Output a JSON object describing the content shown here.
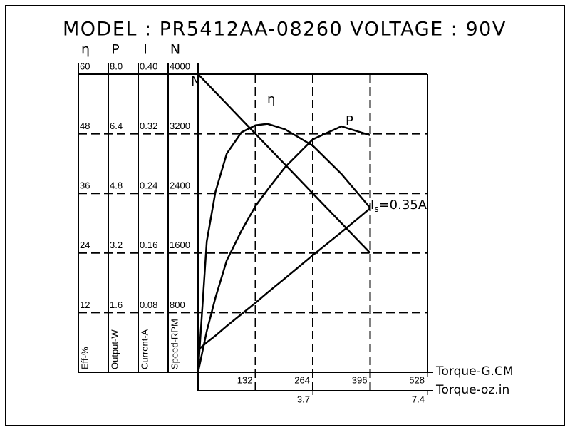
{
  "chart_data": {
    "type": "line",
    "title": "MODEL : PR5412AA-08260 VOLTAGE : 90V",
    "x_label": "Torque-G.CM",
    "x2_label": "Torque-oz.in",
    "x": [
      0,
      20,
      40,
      66,
      100,
      132,
      160,
      200,
      264,
      330,
      396
    ],
    "xlim": [
      0,
      528
    ],
    "xticks": [
      132,
      264,
      396,
      528
    ],
    "x2lim": [
      0,
      7.4
    ],
    "x2ticks": [
      3.7,
      7.4
    ],
    "grid": true,
    "color": "#000000",
    "series": [
      {
        "name": "η",
        "axis_label": "Eff-%",
        "ylim": [
          0,
          60
        ],
        "yticks": [
          12,
          24,
          36,
          48,
          60
        ],
        "values": [
          0,
          26.3,
          36.3,
          44,
          48.3,
          49.7,
          50,
          48.9,
          45.6,
          39.9,
          33.1
        ]
      },
      {
        "name": "P",
        "axis_label": "Output-W",
        "ylim": [
          0,
          8
        ],
        "yticks": [
          1.6,
          3.2,
          4.8,
          6.4,
          {
            "value": 8,
            "label": "8.0"
          }
        ],
        "values": [
          0,
          1.1,
          2.0,
          3.0,
          3.8,
          4.46,
          4.9,
          5.5,
          6.25,
          6.6,
          6.36
        ]
      },
      {
        "name": "I",
        "axis_label": "Current-A",
        "ylim": [
          0,
          0.4
        ],
        "yticks": [
          0.08,
          0.16,
          0.24,
          0.32,
          {
            "value": 0.4,
            "label": "0.40"
          }
        ],
        "values": [
          0.03,
          0.04,
          0.049,
          0.062,
          0.078,
          0.093,
          0.107,
          0.126,
          0.157,
          0.188,
          0.22
        ]
      },
      {
        "name": "N",
        "axis_label": "Speed-RPM",
        "ylim": [
          0,
          4000
        ],
        "yticks": [
          800,
          1600,
          2400,
          3200,
          4000
        ],
        "values": [
          4000,
          3879,
          3758,
          3600,
          3394,
          3200,
          3030,
          2788,
          2400,
          2000,
          1600
        ]
      }
    ],
    "annotation": {
      "main": "I",
      "sub": "s",
      "rest": "=0.35A"
    }
  }
}
